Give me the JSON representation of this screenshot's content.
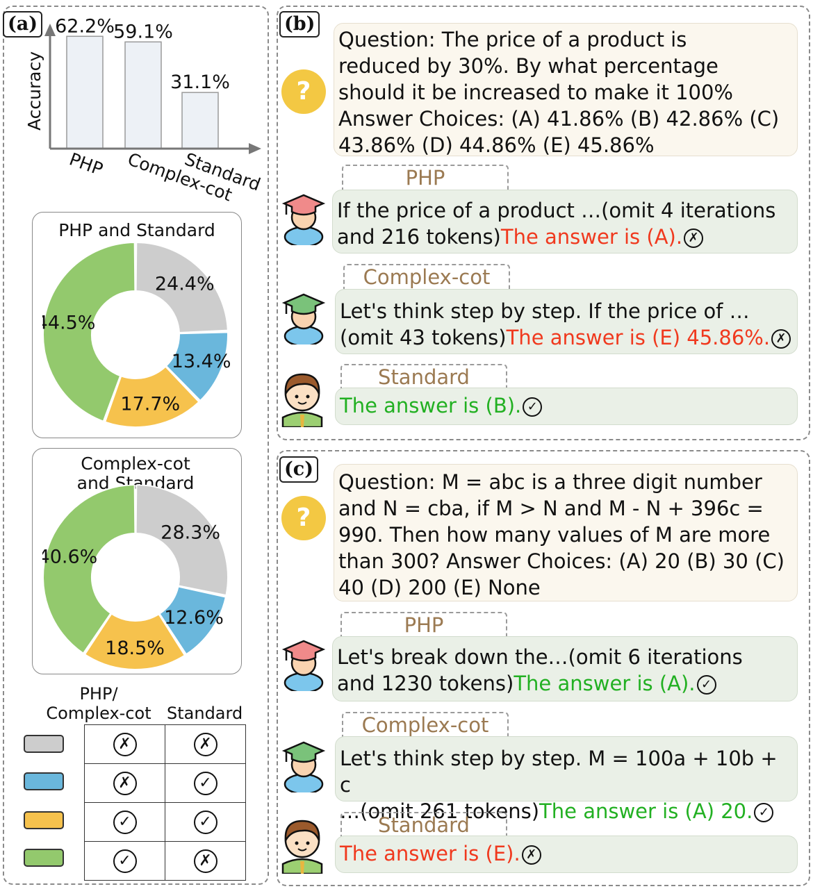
{
  "panel_a": {
    "label": "(a)",
    "bar_chart": {
      "chart_data": {
        "type": "bar",
        "categories": [
          "PHP",
          "Complex-cot",
          "Standard"
        ],
        "values": [
          62.2,
          59.1,
          31.1
        ],
        "value_labels": [
          "62.2%",
          "59.1%",
          "31.1%"
        ],
        "ylabel": "Accuracy",
        "xlabel": ""
      }
    },
    "pie1": {
      "title": "PHP and Standard",
      "chart_data": {
        "type": "pie",
        "labels": [
          "24.4%",
          "13.4%",
          "17.7%",
          "44.5%"
        ],
        "values": [
          24.4,
          13.4,
          17.7,
          44.5
        ],
        "colors": [
          "#cdcdcd",
          "#6ab7dc",
          "#f6c24d",
          "#93c96d"
        ]
      }
    },
    "pie2": {
      "title": "Complex-cot and Standard",
      "chart_data": {
        "type": "pie",
        "labels": [
          "28.3%",
          "12.6%",
          "18.5%",
          "40.6%"
        ],
        "values": [
          28.3,
          12.6,
          18.5,
          40.6
        ],
        "colors": [
          "#cdcdcd",
          "#6ab7dc",
          "#f6c24d",
          "#93c96d"
        ]
      }
    },
    "legend": {
      "col1": "PHP/ Complex-cot",
      "col1_line1": "PHP/",
      "col1_line2": "Complex-cot",
      "col2": "Standard",
      "rows": [
        {
          "color": "#cdcdcd",
          "a": "✗",
          "b": "✗"
        },
        {
          "color": "#6ab7dc",
          "a": "✗",
          "b": "✓"
        },
        {
          "color": "#f6c24d",
          "a": "✓",
          "b": "✓"
        },
        {
          "color": "#93c96d",
          "a": "✓",
          "b": "✗"
        }
      ]
    }
  },
  "panel_b": {
    "label": "(b)",
    "question_lines": [
      "Question: The price of a product is",
      "reduced by 30%. By what percentage",
      "should it be increased to make it 100%",
      "Answer Choices: (A) 41.86% (B) 42.86% (C)",
      "43.86% (D) 44.86% (E) 45.86%"
    ],
    "php": {
      "tag": "PHP",
      "line1": "If the price of a product …(omit 4 iterations",
      "line2_plain": "and 216 tokens)",
      "line2_answer": "The answer is (A)."
    },
    "complex": {
      "tag": "Complex-cot",
      "line1": "Let's think step by step. If the price of …",
      "line2_plain": "(omit 43 tokens)",
      "line2_answer": "The answer is (E) 45.86%."
    },
    "standard": {
      "tag": "Standard",
      "answer": "The answer is (B)."
    }
  },
  "panel_c": {
    "label": "(c)",
    "question_lines": [
      "Question: M = abc is a three digit number",
      "and N = cba, if M > N and M - N + 396c =",
      "990. Then how many values of M are more",
      "than 300? Answer Choices: (A) 20 (B) 30 (C)",
      "40 (D) 200 (E) None"
    ],
    "php": {
      "tag": "PHP",
      "line1": "Let's break down the…(omit 6 iterations",
      "line2_plain": "and 1230 tokens)",
      "line2_answer": "The answer is (A)."
    },
    "complex": {
      "tag": "Complex-cot",
      "line1": "Let's think step by step.  M = 100a + 10b + c",
      "line2_plain": "…(omit 261 tokens)",
      "line2_answer": "The answer is (A) 20."
    },
    "standard": {
      "tag": "Standard",
      "answer": "The answer is (E)."
    }
  },
  "icons": {
    "question": "?",
    "wrong": "✗",
    "right": "✓"
  }
}
